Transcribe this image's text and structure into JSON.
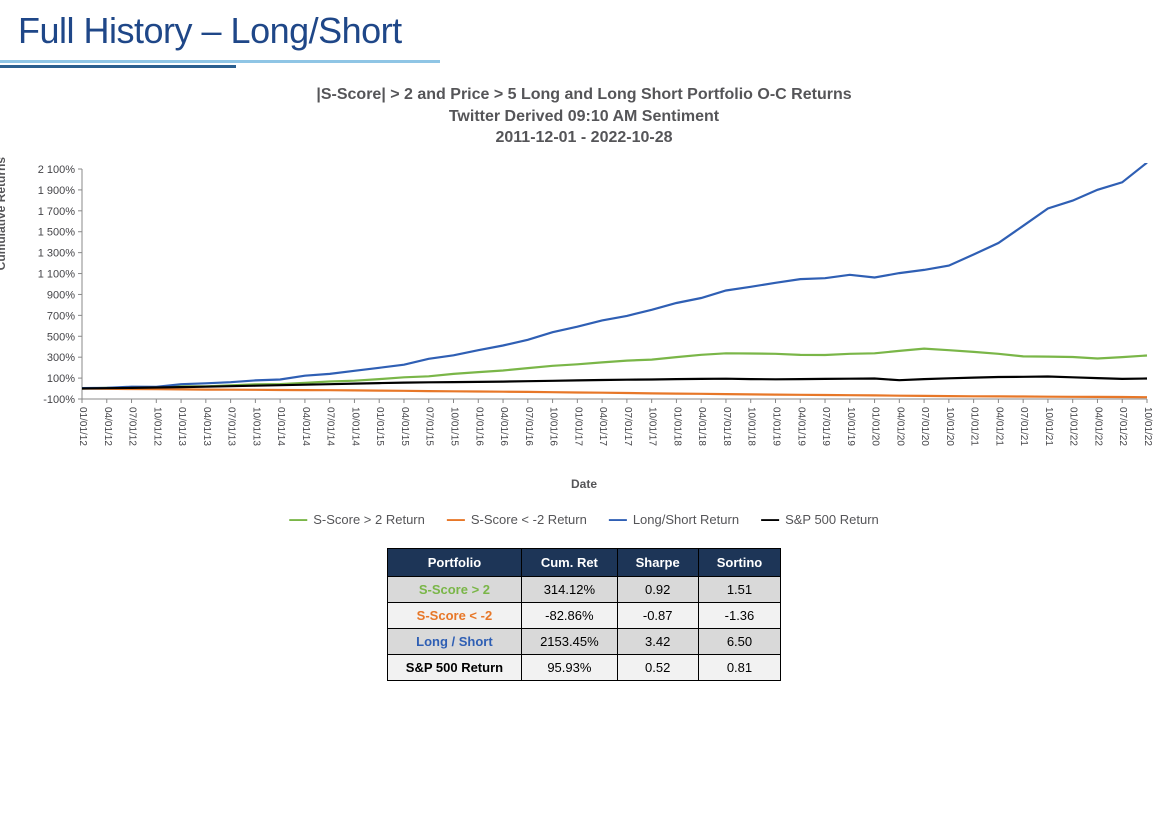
{
  "header": {
    "title": "Full History – Long/Short"
  },
  "chart": {
    "type": "line",
    "title_line1": "|S-Score| > 2 and Price > 5 Long and Long Short Portfolio O-C Returns",
    "title_line2": "Twitter Derived 09:10 AM Sentiment",
    "title_line3": "2011-12-01 - 2022-10-28",
    "y_label": "Cumulative Returns",
    "x_label": "Date",
    "ylim": [
      -100,
      2100
    ],
    "yticks": [
      -100,
      100,
      300,
      500,
      700,
      900,
      1100,
      1300,
      1500,
      1700,
      1900,
      2100
    ],
    "ytick_labels": [
      "-100%",
      "100%",
      "300%",
      "500%",
      "700%",
      "900%",
      "1 100%",
      "1 300%",
      "1 500%",
      "1 700%",
      "1 900%",
      "2 100%"
    ],
    "xtick_labels": [
      "01/01/12",
      "04/01/12",
      "07/01/12",
      "10/01/12",
      "01/01/13",
      "04/01/13",
      "07/01/13",
      "10/01/13",
      "01/01/14",
      "04/01/14",
      "07/01/14",
      "10/01/14",
      "01/01/15",
      "04/01/15",
      "07/01/15",
      "10/01/15",
      "01/01/16",
      "04/01/16",
      "07/01/16",
      "10/01/16",
      "01/01/17",
      "04/01/17",
      "07/01/17",
      "10/01/17",
      "01/01/18",
      "04/01/18",
      "07/01/18",
      "10/01/18",
      "01/01/19",
      "04/01/19",
      "07/01/19",
      "10/01/19",
      "01/01/20",
      "04/01/20",
      "07/01/20",
      "10/01/20",
      "01/01/21",
      "04/01/21",
      "07/01/21",
      "10/01/21",
      "01/01/22",
      "04/01/22",
      "07/01/22",
      "10/01/22"
    ],
    "background_color": "#ffffff",
    "axis_color": "#888888",
    "title_color": "#555558",
    "label_fontsize": 12,
    "title_fontsize": 16,
    "line_width": 2.2,
    "series": [
      {
        "name": "S-Score > 2 Return",
        "color": "#7ab648",
        "legend_label": "S-Score > 2 Return",
        "values": [
          0,
          5,
          8,
          12,
          18,
          24,
          30,
          38,
          45,
          55,
          65,
          78,
          90,
          105,
          120,
          140,
          155,
          175,
          195,
          215,
          235,
          250,
          265,
          280,
          300,
          320,
          340,
          335,
          330,
          325,
          320,
          330,
          340,
          360,
          380,
          370,
          350,
          330,
          310,
          305,
          300,
          290,
          300,
          314
        ]
      },
      {
        "name": "S-Score < -2 Return",
        "color": "#e77728",
        "legend_label": "S-Score < -2 Return",
        "values": [
          0,
          -2,
          -4,
          -6,
          -8,
          -10,
          -11,
          -12,
          -14,
          -15,
          -16,
          -18,
          -20,
          -22,
          -24,
          -26,
          -28,
          -30,
          -32,
          -35,
          -38,
          -40,
          -43,
          -46,
          -48,
          -50,
          -53,
          -56,
          -58,
          -60,
          -62,
          -64,
          -66,
          -68,
          -70,
          -72,
          -74,
          -75,
          -76,
          -78,
          -79,
          -80,
          -81,
          -83
        ]
      },
      {
        "name": "Long/Short Return",
        "color": "#2f5fb4",
        "legend_label": "Long/Short Return",
        "values": [
          0,
          8,
          16,
          25,
          35,
          48,
          62,
          78,
          95,
          115,
          140,
          170,
          200,
          235,
          275,
          320,
          365,
          415,
          470,
          530,
          595,
          650,
          700,
          755,
          810,
          870,
          935,
          980,
          1010,
          1040,
          1060,
          1085,
          1070,
          1100,
          1130,
          1180,
          1280,
          1400,
          1550,
          1720,
          1800,
          1900,
          1980,
          2153
        ]
      },
      {
        "name": "S&P 500 Return",
        "color": "#000000",
        "legend_label": "S&P 500 Return",
        "values": [
          0,
          3,
          6,
          10,
          14,
          18,
          22,
          27,
          32,
          37,
          42,
          47,
          52,
          57,
          60,
          62,
          64,
          66,
          70,
          74,
          78,
          82,
          85,
          87,
          90,
          92,
          94,
          90,
          88,
          90,
          92,
          94,
          96,
          80,
          90,
          98,
          105,
          110,
          112,
          115,
          108,
          100,
          92,
          96
        ]
      }
    ]
  },
  "legend": {
    "items": [
      {
        "label": "S-Score > 2 Return",
        "color": "#7ab648"
      },
      {
        "label": "S-Score < -2 Return",
        "color": "#e77728"
      },
      {
        "label": "Long/Short Return",
        "color": "#2f5fb4"
      },
      {
        "label": "S&P 500 Return",
        "color": "#000000"
      }
    ]
  },
  "table": {
    "columns": [
      "Portfolio",
      "Cum. Ret",
      "Sharpe",
      "Sortino"
    ],
    "header_bg": "#1d3557",
    "header_fg": "#ffffff",
    "row_bg_alt": [
      "#d9d9d9",
      "#f2f2f2"
    ],
    "rows": [
      {
        "label": "S-Score > 2",
        "label_color": "#7ab648",
        "cum_ret": "314.12%",
        "sharpe": "0.92",
        "sortino": "1.51"
      },
      {
        "label": "S-Score < -2",
        "label_color": "#e77728",
        "cum_ret": "-82.86%",
        "sharpe": "-0.87",
        "sortino": "-1.36"
      },
      {
        "label": "Long / Short",
        "label_color": "#2f5fb4",
        "cum_ret": "2153.45%",
        "sharpe": "3.42",
        "sortino": "6.50"
      },
      {
        "label": "S&P 500 Return",
        "label_color": "#000000",
        "cum_ret": "95.93%",
        "sharpe": "0.52",
        "sortino": "0.81"
      }
    ]
  }
}
